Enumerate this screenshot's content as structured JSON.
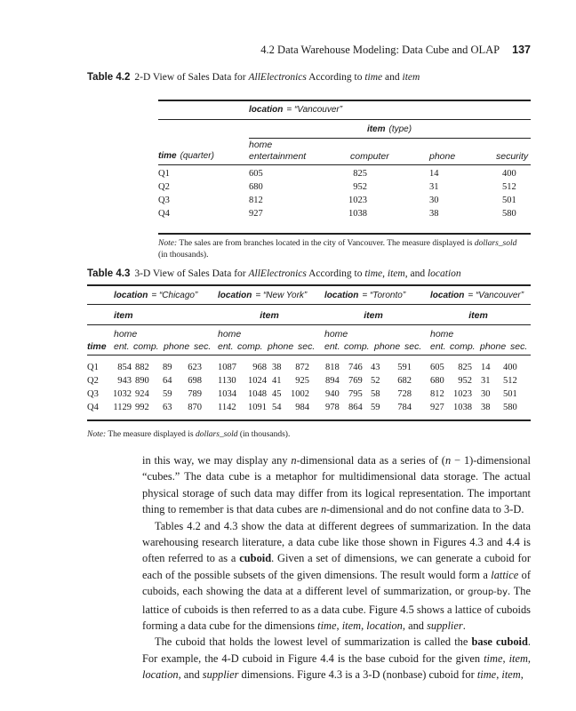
{
  "header": {
    "running_title": "4.2 Data Warehouse Modeling: Data Cube and OLAP",
    "page_number": "137"
  },
  "table42": {
    "label": "Table 4.2",
    "caption_parts": [
      "2-D View of Sales Data for ",
      "AllElectronics",
      " According to ",
      "time",
      " and ",
      "item"
    ],
    "location_key": "location",
    "location_val": "= “Vancouver”",
    "item_key": "item",
    "item_sub": "(type)",
    "time_key": "time",
    "time_sub": "(quarter)",
    "columns": [
      "home",
      "entertainment",
      "computer",
      "phone",
      "security"
    ],
    "rows": [
      [
        "Q1",
        "605",
        "825",
        "14",
        "400"
      ],
      [
        "Q2",
        "680",
        "952",
        "31",
        "512"
      ],
      [
        "Q3",
        "812",
        "1023",
        "30",
        "501"
      ],
      [
        "Q4",
        "927",
        "1038",
        "38",
        "580"
      ]
    ],
    "note_label": "Note:",
    "note_text": " The sales are from branches located in the city of Vancouver. The measure displayed is ",
    "note_measure": "dollars_sold",
    "note_end": "(in thousands)."
  },
  "table43": {
    "label": "Table 4.3",
    "caption_parts": [
      "3-D View of Sales Data for ",
      "AllElectronics",
      " According to ",
      "time",
      ", ",
      "item",
      ", and ",
      "location"
    ],
    "locations": [
      {
        "key": "location",
        "val": "= “Chicago”"
      },
      {
        "key": "location",
        "val": "= “New York”"
      },
      {
        "key": "location",
        "val": "= “Toronto”"
      },
      {
        "key": "location",
        "val": "= “Vancouver”"
      }
    ],
    "item_label": "item",
    "time_label": "time",
    "sub_headers": {
      "home": "home",
      "ent": "ent.",
      "comp": "comp.",
      "phone": "phone",
      "sec": "sec."
    },
    "rows": [
      [
        "Q1",
        "854",
        "882",
        "89",
        "623",
        "1087",
        "968",
        "38",
        "872",
        "818",
        "746",
        "43",
        "591",
        "605",
        "825",
        "14",
        "400"
      ],
      [
        "Q2",
        "943",
        "890",
        "64",
        "698",
        "1130",
        "1024",
        "41",
        "925",
        "894",
        "769",
        "52",
        "682",
        "680",
        "952",
        "31",
        "512"
      ],
      [
        "Q3",
        "1032",
        "924",
        "59",
        "789",
        "1034",
        "1048",
        "45",
        "1002",
        "940",
        "795",
        "58",
        "728",
        "812",
        "1023",
        "30",
        "501"
      ],
      [
        "Q4",
        "1129",
        "992",
        "63",
        "870",
        "1142",
        "1091",
        "54",
        "984",
        "978",
        "864",
        "59",
        "784",
        "927",
        "1038",
        "38",
        "580"
      ]
    ],
    "note_label": "Note:",
    "note_text": " The measure displayed is ",
    "note_measure": "dollars_sold",
    "note_end": " (in thousands)."
  },
  "body": {
    "paragraphs": [
      [
        [
          "",
          "in this way, we may display any "
        ],
        [
          "i",
          "n"
        ],
        [
          "",
          "-dimensional data as a series of ("
        ],
        [
          "i",
          "n"
        ],
        [
          "",
          " − 1)-dimensional “cubes.” The data cube is a metaphor for multidimensional data storage. The actual physical storage of such data may differ from its logical representation. The important thing to remember is that data cubes are "
        ],
        [
          "i",
          "n"
        ],
        [
          "",
          "-dimensional and do not confine data to 3-D."
        ]
      ],
      [
        [
          "",
          "Tables 4.2 and 4.3 show the data at different degrees of summarization. In the data warehousing research literature, a data cube like those shown in Figures 4.3 and 4.4 is often referred to as a "
        ],
        [
          "b",
          "cuboid"
        ],
        [
          "",
          ". Given a set of dimensions, we can generate a cuboid for each of the possible subsets of the given dimensions. The result would form a "
        ],
        [
          "i",
          "lattice"
        ],
        [
          "",
          " of cuboids, each showing the data at a different level of summarization, or "
        ],
        [
          "g",
          "group-by"
        ],
        [
          "",
          ". The lattice of cuboids is then referred to as a data cube. Figure 4.5 shows a lattice of cuboids forming a data cube for the dimensions "
        ],
        [
          "i",
          "time"
        ],
        [
          ", ",
          ""
        ],
        [
          "i",
          "item"
        ],
        [
          ", ",
          ""
        ],
        [
          "i",
          "location"
        ],
        [
          "",
          ", and "
        ],
        [
          "i",
          "supplier"
        ],
        [
          "",
          "."
        ]
      ],
      [
        [
          "",
          "The cuboid that holds the lowest level of summarization is called the "
        ],
        [
          "b",
          "base cuboid"
        ],
        [
          "",
          ". For example, the 4-D cuboid in Figure 4.4 is the base cuboid for the given "
        ],
        [
          "i",
          "time"
        ],
        [
          "",
          ", "
        ],
        [
          "i",
          "item"
        ],
        [
          "",
          ", "
        ],
        [
          "i",
          "location"
        ],
        [
          "",
          ", and "
        ],
        [
          "i",
          "supplier"
        ],
        [
          "",
          " dimensions. Figure 4.3 is a 3-D (nonbase) cuboid for "
        ],
        [
          "i",
          "time"
        ],
        [
          "",
          ", "
        ],
        [
          "i",
          "item"
        ],
        [
          "",
          ","
        ]
      ]
    ]
  }
}
